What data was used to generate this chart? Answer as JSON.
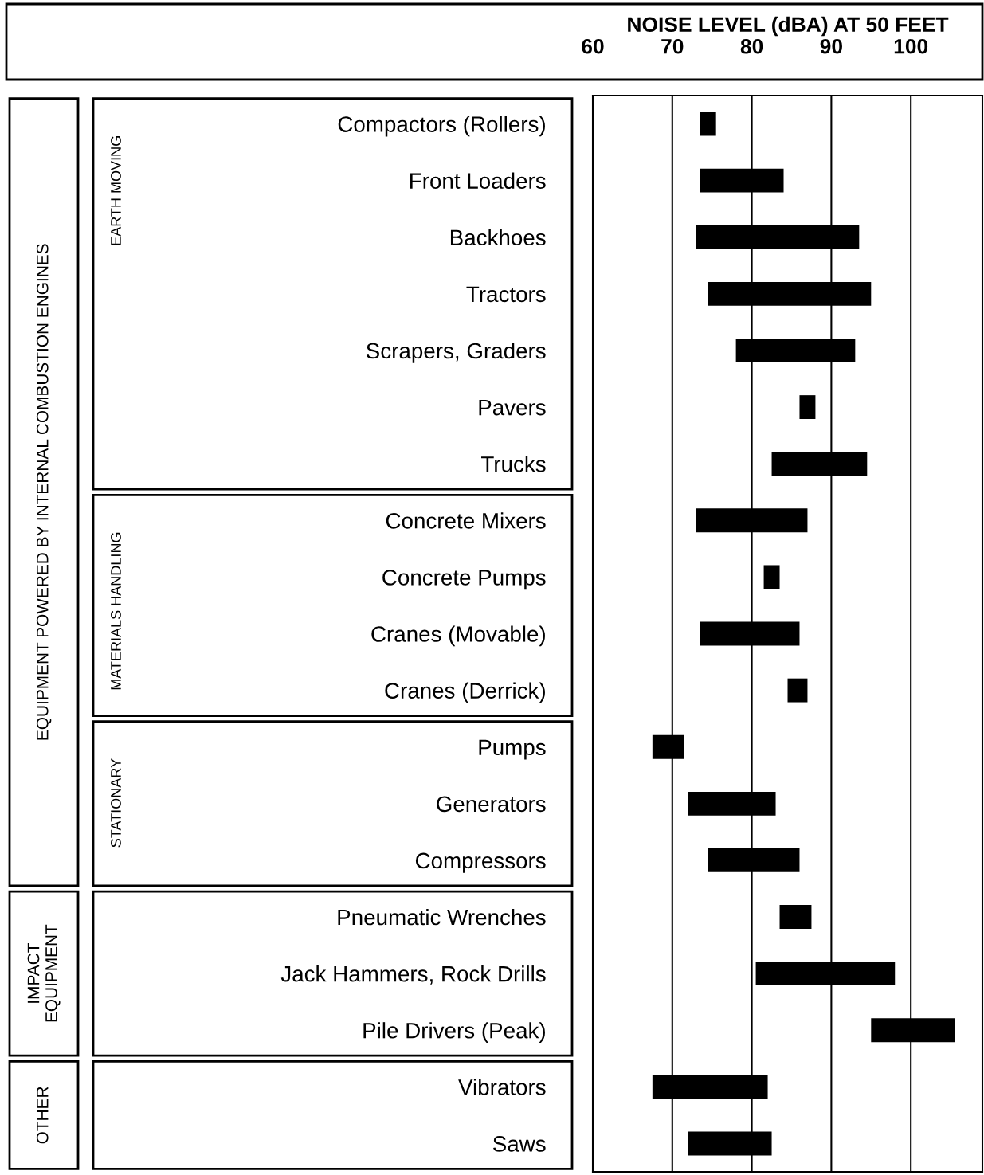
{
  "chart_data": {
    "type": "bar",
    "orientation": "horizontal",
    "xlabel": "NOISE LEVEL (dBA) AT 50 FEET",
    "categories": [
      "Compactors (Rollers)",
      "Front Loaders",
      "Backhoes",
      "Tractors",
      "Scrapers, Graders",
      "Pavers",
      "Trucks",
      "Concrete Mixers",
      "Concrete Pumps",
      "Cranes (Movable)",
      "Cranes (Derrick)",
      "Pumps",
      "Generators",
      "Compressors",
      "Pneumatic Wrenches",
      "Jack Hammers, Rock Drills",
      "Pile Drivers (Peak)",
      "Vibrators",
      "Saws"
    ],
    "base": [
      73.5,
      73.5,
      73,
      74.5,
      78,
      86,
      82.5,
      73,
      81.5,
      73.5,
      84.5,
      67.5,
      72,
      74.5,
      83.5,
      80.5,
      95,
      67.5,
      72
    ],
    "values": [
      2,
      10.5,
      20.5,
      20.5,
      15,
      2,
      12,
      14,
      2,
      12.5,
      2.5,
      4,
      11,
      11.5,
      4,
      17.5,
      10.5,
      14.5,
      10.5
    ],
    "color": "#000000",
    "xlim": [
      60,
      109
    ],
    "xticks": [
      60,
      70,
      80,
      90,
      100
    ],
    "grid": "x",
    "annotations": [
      "EQUIPMENT POWERED BY INTERNAL COMBUSTION ENGINES",
      "EARTH MOVING",
      "MATERIALS HANDLING",
      "STATIONARY",
      "IMPACT\nEQUIPMENT",
      "OTHER"
    ]
  }
}
